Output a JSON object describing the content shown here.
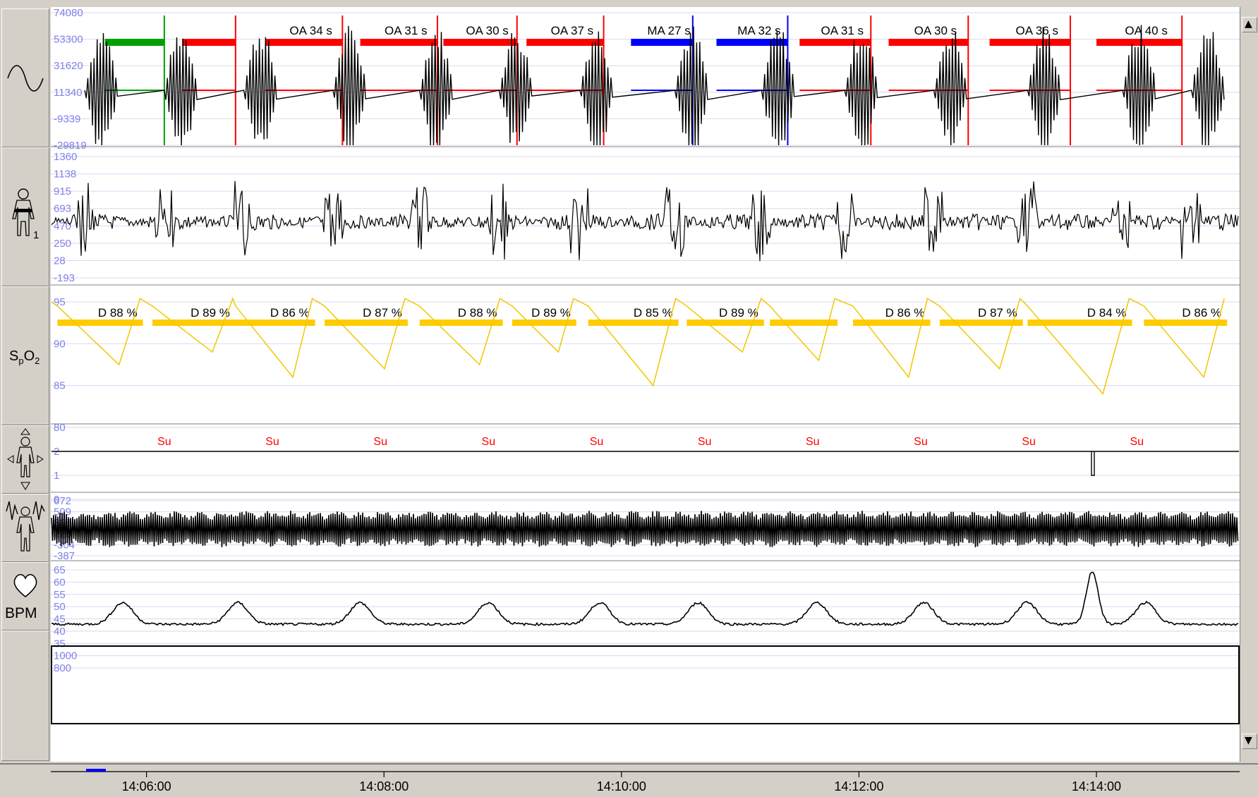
{
  "colors": {
    "axis_label": "#8080e8",
    "grid": "#d8d8f2",
    "oa": "#ff0000",
    "ma": "#0000ff",
    "green": "#00a000",
    "desat": "#ffcc00",
    "spo2_line": "#f0c800",
    "su": "#ff0000",
    "trace": "#000000"
  },
  "icons": [
    "sine-wave-icon",
    "chest-belt-body-icon",
    "spo2-label",
    "body-position-icon",
    "snore-body-icon",
    "heart-icon"
  ],
  "sidebar": {
    "spo2_label": "SpO2",
    "bpm_label": "BPM",
    "chest_subscript": "1"
  },
  "channels": {
    "flow": {
      "ticks": [
        "74080",
        "53300",
        "31620",
        "11340",
        "-9339",
        "-29819"
      ]
    },
    "chest": {
      "ticks": [
        "1360",
        "1138",
        "915",
        "693",
        "470",
        "250",
        "28",
        "-193"
      ]
    },
    "spo2": {
      "ticks": [
        "95",
        "90",
        "85",
        "80"
      ]
    },
    "position": {
      "ticks": [
        "2",
        "1",
        "0"
      ]
    },
    "snore": {
      "ticks": [
        "672",
        "509",
        "398",
        "225",
        "-304",
        "-387"
      ]
    },
    "hr": {
      "ticks": [
        "65",
        "60",
        "55",
        "50",
        "45",
        "40",
        "35",
        "1000",
        "800"
      ]
    }
  },
  "events": [
    {
      "label": "",
      "type": "green",
      "start_min": 0.45,
      "end_min": 0.95
    },
    {
      "label": "",
      "type": "OA",
      "start_min": 1.1,
      "end_min": 1.55
    },
    {
      "label": "OA 34 s",
      "type": "OA",
      "start_min": 1.8,
      "end_min": 2.45
    },
    {
      "label": "OA 31 s",
      "type": "OA",
      "start_min": 2.6,
      "end_min": 3.25
    },
    {
      "label": "OA 30 s",
      "type": "OA",
      "start_min": 3.3,
      "end_min": 3.92
    },
    {
      "label": "OA 37 s",
      "type": "OA",
      "start_min": 4.0,
      "end_min": 4.65
    },
    {
      "label": "MA 27 s",
      "type": "MA",
      "start_min": 4.88,
      "end_min": 5.4
    },
    {
      "label": "MA 32 s",
      "type": "MA",
      "start_min": 5.6,
      "end_min": 6.2
    },
    {
      "label": "OA 31 s",
      "type": "OA",
      "start_min": 6.3,
      "end_min": 6.9
    },
    {
      "label": "OA 30 s",
      "type": "OA",
      "start_min": 7.05,
      "end_min": 7.72
    },
    {
      "label": "OA 36 s",
      "type": "OA",
      "start_min": 7.9,
      "end_min": 8.58
    },
    {
      "label": "OA 40 s",
      "type": "OA",
      "start_min": 8.8,
      "end_min": 9.52
    }
  ],
  "desats": [
    {
      "label": "D 88 %",
      "start_min": 0.05,
      "end_min": 0.77,
      "nadir": 87.5
    },
    {
      "label": "D 89 %",
      "start_min": 0.85,
      "end_min": 1.55,
      "nadir": 89
    },
    {
      "label": "D 86 %",
      "start_min": 1.55,
      "end_min": 2.22,
      "nadir": 86
    },
    {
      "label": "D 87 %",
      "start_min": 2.3,
      "end_min": 3.0,
      "nadir": 87
    },
    {
      "label": "D 88 %",
      "start_min": 3.1,
      "end_min": 3.8,
      "nadir": 87.5
    },
    {
      "label": "D 89 %",
      "start_min": 3.88,
      "end_min": 4.42,
      "nadir": 89
    },
    {
      "label": "D 85 %",
      "start_min": 4.52,
      "end_min": 5.28,
      "nadir": 85
    },
    {
      "label": "D 89 %",
      "start_min": 5.35,
      "end_min": 6.0,
      "nadir": 89
    },
    {
      "label": "",
      "start_min": 6.05,
      "end_min": 6.62,
      "nadir": 88
    },
    {
      "label": "D 86 %",
      "start_min": 6.75,
      "end_min": 7.4,
      "nadir": 86
    },
    {
      "label": "D 87 %",
      "start_min": 7.48,
      "end_min": 8.18,
      "nadir": 87
    },
    {
      "label": "D 84 %",
      "start_min": 8.22,
      "end_min": 9.1,
      "nadir": 84
    },
    {
      "label": "D 86 %",
      "start_min": 9.2,
      "end_min": 9.9,
      "nadir": 86
    }
  ],
  "su_marks": [
    {
      "label": "Su",
      "at_min": 0.95
    },
    {
      "label": "Su",
      "at_min": 1.86
    },
    {
      "label": "Su",
      "at_min": 2.77
    },
    {
      "label": "Su",
      "at_min": 3.68
    },
    {
      "label": "Su",
      "at_min": 4.59
    },
    {
      "label": "Su",
      "at_min": 5.5
    },
    {
      "label": "Su",
      "at_min": 6.41
    },
    {
      "label": "Su",
      "at_min": 7.32
    },
    {
      "label": "Su",
      "at_min": 8.23
    },
    {
      "label": "Su",
      "at_min": 9.14
    }
  ],
  "hr_peak_min": 8.77,
  "time_axis": {
    "ticks": [
      {
        "label": "14:06:00",
        "at_min": 0.8
      },
      {
        "label": "14:08:00",
        "at_min": 2.8
      },
      {
        "label": "14:10:00",
        "at_min": 4.8
      },
      {
        "label": "14:12:00",
        "at_min": 6.8
      },
      {
        "label": "14:14:00",
        "at_min": 8.8
      }
    ]
  },
  "scroll": {
    "up_arrow": "▲",
    "down_arrow": "▼"
  }
}
